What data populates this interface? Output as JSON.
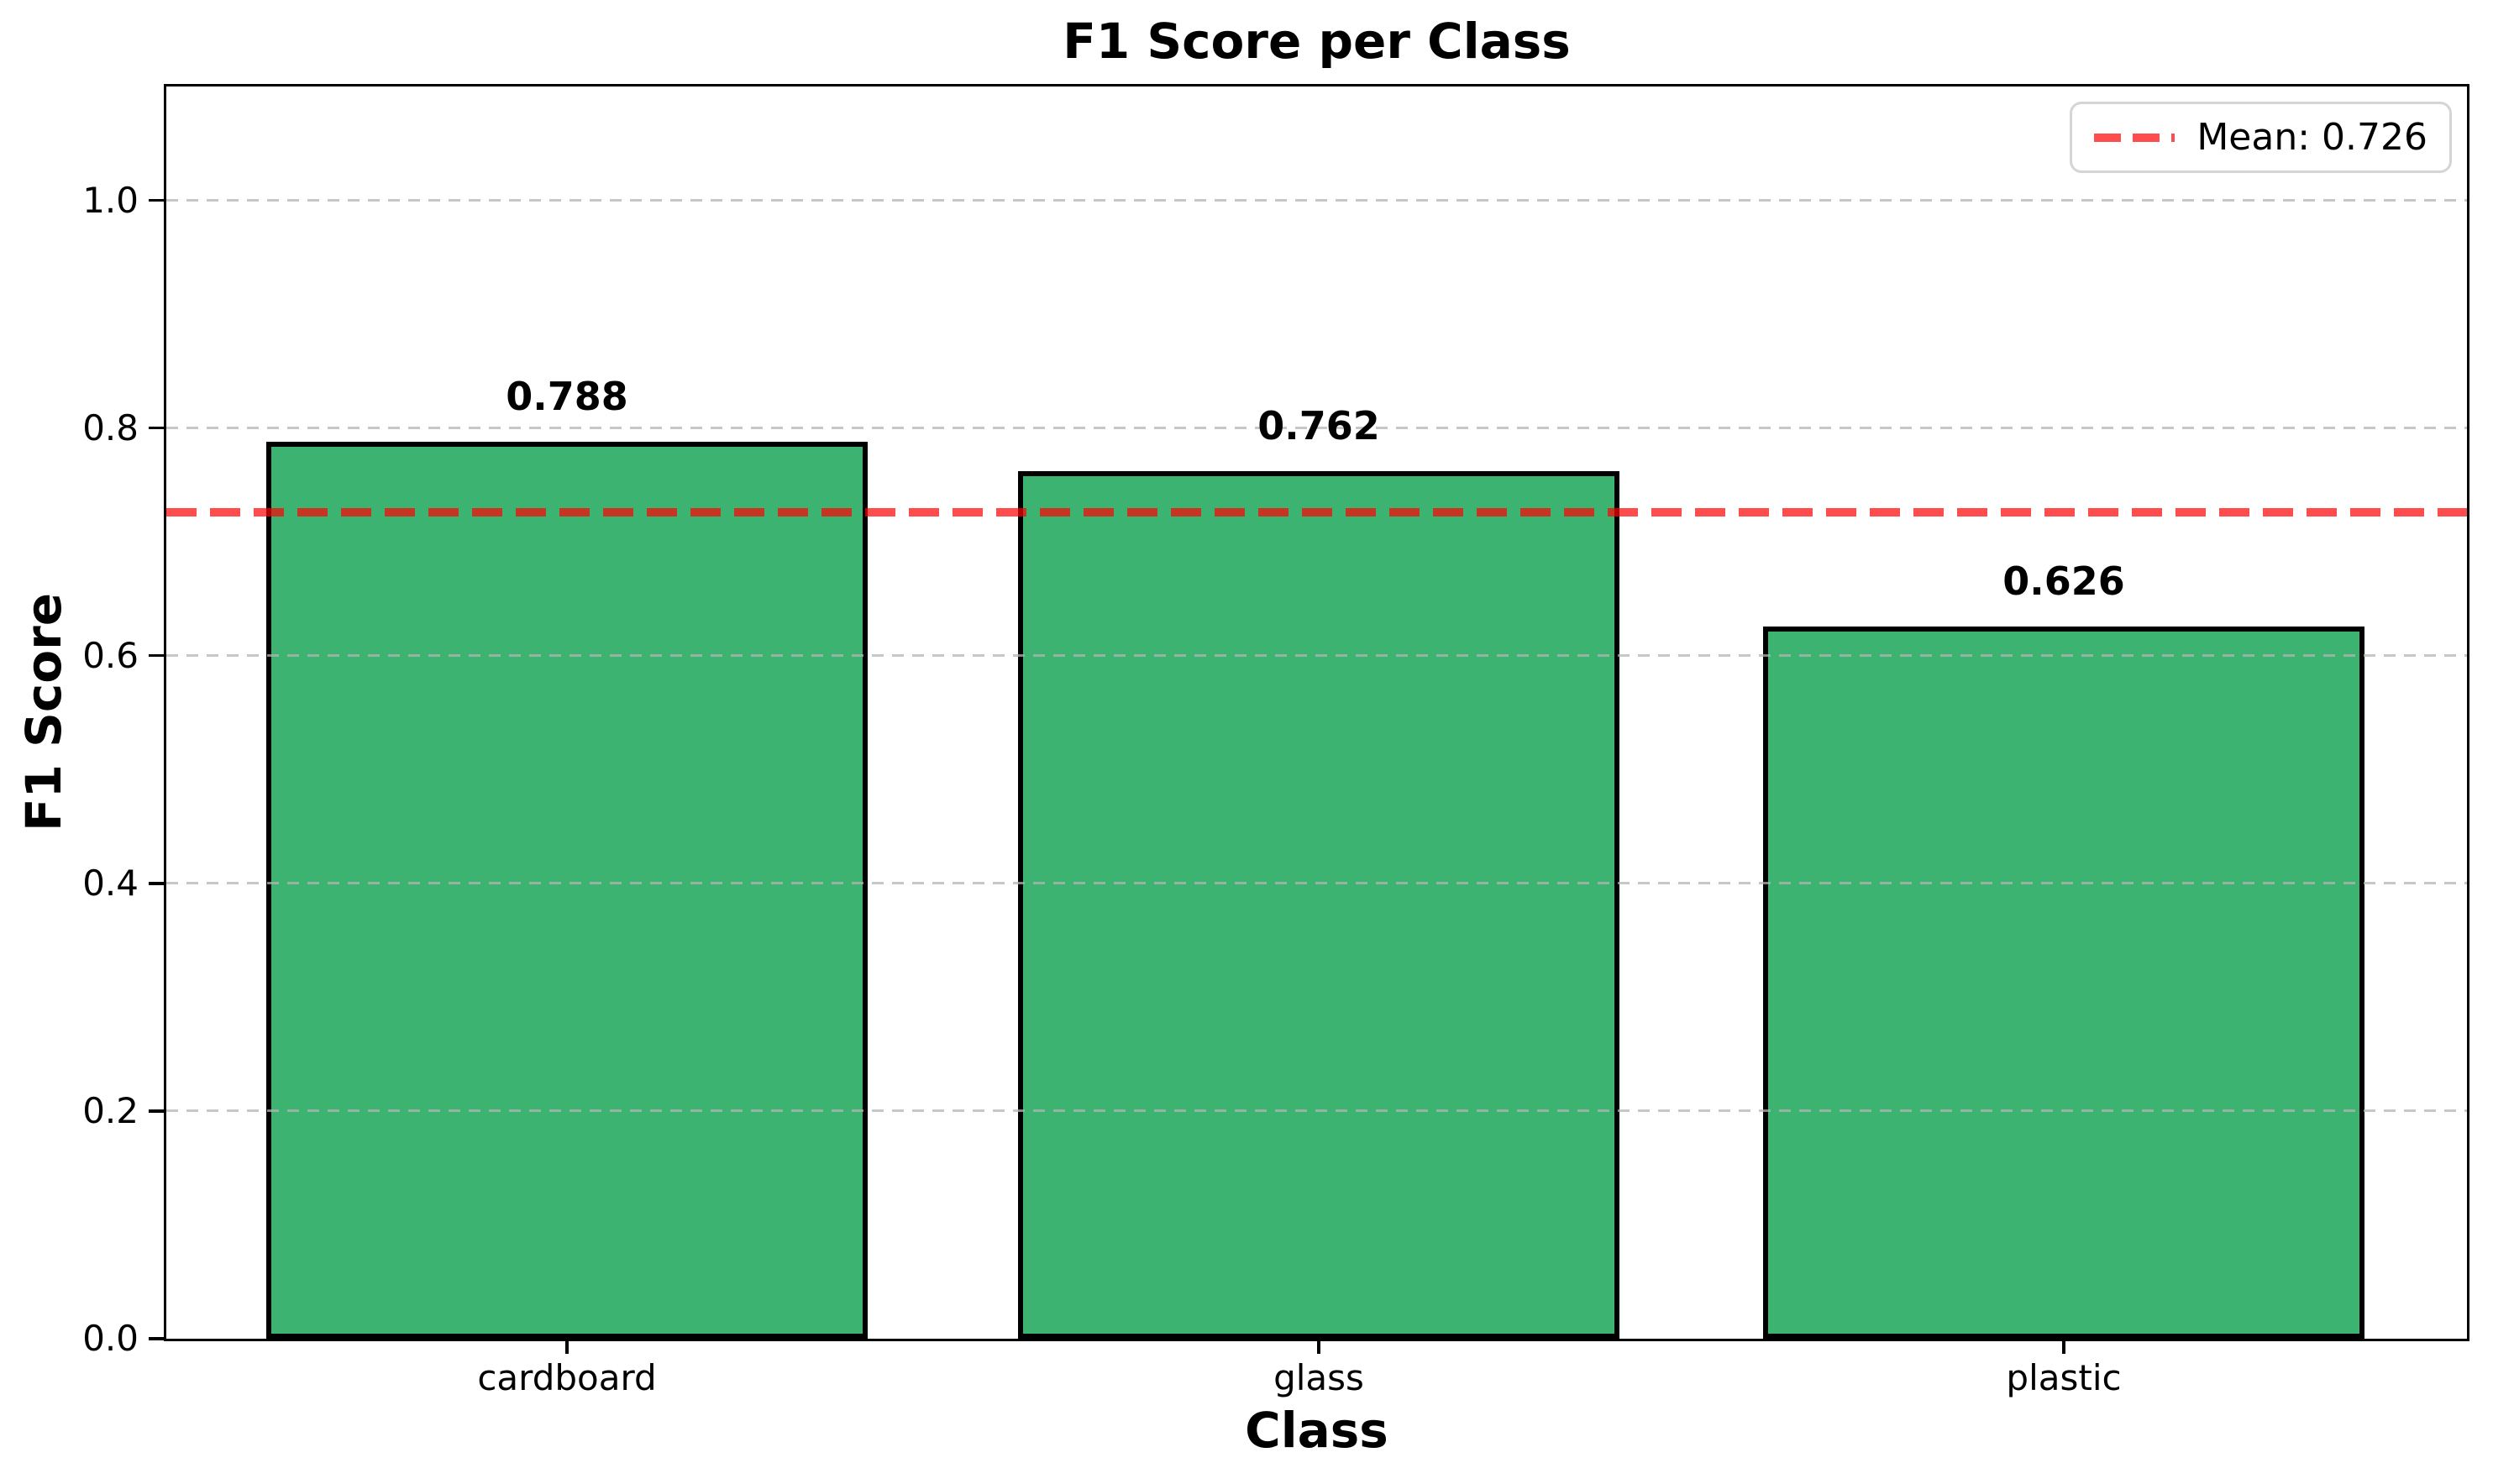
{
  "chart_data": {
    "type": "bar",
    "title": "F1 Score per Class",
    "xlabel": "Class",
    "ylabel": "F1 Score",
    "categories": [
      "cardboard",
      "glass",
      "plastic"
    ],
    "values": [
      0.788,
      0.762,
      0.626
    ],
    "bar_labels": [
      "0.788",
      "0.762",
      "0.626"
    ],
    "mean_value": 0.726,
    "mean_line_label": "Mean: 0.726",
    "yticks": [
      "0.0",
      "0.2",
      "0.4",
      "0.6",
      "0.8",
      "1.0"
    ],
    "ylim": [
      0,
      1.1
    ],
    "grid": true,
    "grid_style": "dashed",
    "legend_position": "upper right",
    "colors": {
      "bar_fill": "#3CB371",
      "bar_edge": "#000000",
      "mean_line": "rgba(255,0,0,0.7)",
      "grid_line": "rgba(180,180,180,0.75)",
      "legend_border": "#D5D5D5",
      "background": "#FFFFFF",
      "text": "#000000"
    }
  }
}
